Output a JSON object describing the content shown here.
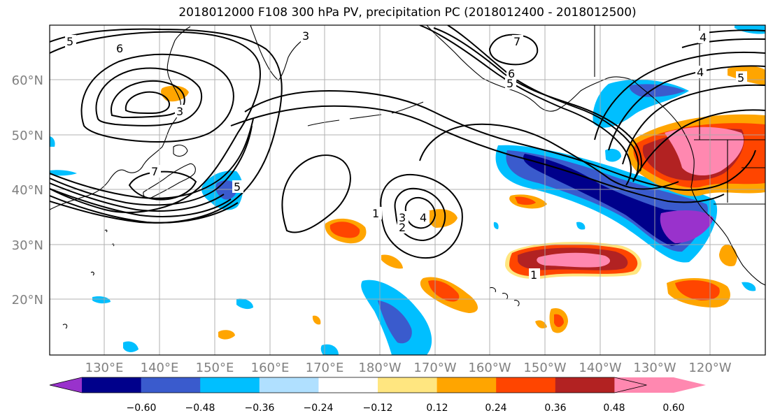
{
  "title": "2018012000 F108 300 hPa PV, precipitation PC (2018012400 - 2018012500)",
  "colors": {
    "ocean": "#ffffff",
    "grid": "#a9a9a9",
    "coast": "#000000",
    "contour": "#000000",
    "tick_label": "#808080"
  },
  "lat_labels": [
    "60°N",
    "50°N",
    "40°N",
    "30°N",
    "20°N"
  ],
  "lon_labels": [
    "130°E",
    "140°E",
    "150°E",
    "160°E",
    "170°E",
    "180°W",
    "170°W",
    "160°W",
    "150°W",
    "140°W",
    "130°W",
    "120°W"
  ],
  "contour_labels": [
    "5",
    "6",
    "3",
    "3",
    "7",
    "6",
    "5",
    "4",
    "4",
    "5",
    "1",
    "2",
    "3",
    "4",
    "1",
    "7",
    "5"
  ],
  "colorbar": {
    "colors": [
      "#9932cc",
      "#00008b",
      "#3a5bcd",
      "#00bfff",
      "#b0e0ff",
      "#ffffff",
      "#ffe680",
      "#ffa500",
      "#ff4500",
      "#b22222",
      "#ff88b0"
    ],
    "tick_labels": [
      "−0.60",
      "−0.48",
      "−0.36",
      "−0.24",
      "−0.12",
      "0.12",
      "0.24",
      "0.36",
      "0.48",
      "0.60"
    ]
  }
}
